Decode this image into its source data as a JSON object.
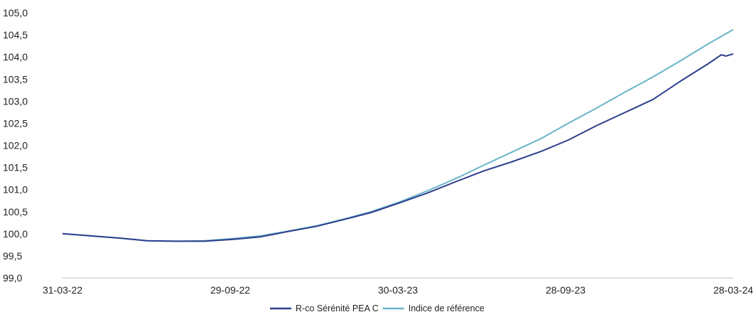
{
  "chart_data": {
    "type": "line",
    "title": "",
    "xlabel": "",
    "ylabel": "",
    "x_tick_labels": [
      "31-03-22",
      "29-09-22",
      "30-03-23",
      "28-09-23",
      "28-03-24"
    ],
    "y_tick_labels": [
      "99,0",
      "99,5",
      "100,0",
      "100,5",
      "101,0",
      "101,5",
      "102,0",
      "102,5",
      "103,0",
      "103,5",
      "104,0",
      "104,5",
      "105,0"
    ],
    "ylim": [
      99.0,
      105.0
    ],
    "xlim": [
      "2022-03-31",
      "2024-03-28"
    ],
    "grid": false,
    "legend_position": "bottom",
    "series": [
      {
        "name": "R-co Sérénité PEA C",
        "color": "#2c3e8c",
        "points": [
          [
            "2022-03-31",
            100.0
          ],
          [
            "2022-05-01",
            99.95
          ],
          [
            "2022-06-01",
            99.9
          ],
          [
            "2022-07-01",
            99.84
          ],
          [
            "2022-08-01",
            99.83
          ],
          [
            "2022-09-01",
            99.83
          ],
          [
            "2022-10-01",
            99.87
          ],
          [
            "2022-11-01",
            99.93
          ],
          [
            "2022-12-01",
            100.05
          ],
          [
            "2023-01-01",
            100.17
          ],
          [
            "2023-02-01",
            100.33
          ],
          [
            "2023-03-01",
            100.48
          ],
          [
            "2023-04-01",
            100.7
          ],
          [
            "2023-05-01",
            100.92
          ],
          [
            "2023-06-01",
            101.18
          ],
          [
            "2023-07-01",
            101.42
          ],
          [
            "2023-08-01",
            101.63
          ],
          [
            "2023-09-01",
            101.86
          ],
          [
            "2023-10-01",
            102.12
          ],
          [
            "2023-11-01",
            102.45
          ],
          [
            "2023-12-01",
            102.74
          ],
          [
            "2024-01-01",
            103.04
          ],
          [
            "2024-02-01",
            103.47
          ],
          [
            "2024-03-01",
            103.85
          ],
          [
            "2024-03-15",
            104.05
          ],
          [
            "2024-03-20",
            104.02
          ],
          [
            "2024-03-28",
            104.07
          ]
        ]
      },
      {
        "name": "Indice de référence",
        "color": "#6ab3c8",
        "points": [
          [
            "2022-03-31",
            100.0
          ],
          [
            "2022-05-01",
            99.95
          ],
          [
            "2022-06-01",
            99.9
          ],
          [
            "2022-07-01",
            99.84
          ],
          [
            "2022-08-01",
            99.83
          ],
          [
            "2022-09-01",
            99.84
          ],
          [
            "2022-10-01",
            99.89
          ],
          [
            "2022-11-01",
            99.95
          ],
          [
            "2022-12-01",
            100.06
          ],
          [
            "2023-01-01",
            100.18
          ],
          [
            "2023-02-01",
            100.34
          ],
          [
            "2023-03-01",
            100.5
          ],
          [
            "2023-04-01",
            100.72
          ],
          [
            "2023-05-01",
            100.97
          ],
          [
            "2023-06-01",
            101.25
          ],
          [
            "2023-07-01",
            101.55
          ],
          [
            "2023-08-01",
            101.85
          ],
          [
            "2023-09-01",
            102.15
          ],
          [
            "2023-10-01",
            102.5
          ],
          [
            "2023-11-01",
            102.85
          ],
          [
            "2023-12-01",
            103.2
          ],
          [
            "2024-01-01",
            103.55
          ],
          [
            "2024-02-01",
            103.93
          ],
          [
            "2024-03-01",
            104.3
          ],
          [
            "2024-03-28",
            104.62
          ]
        ]
      }
    ]
  }
}
